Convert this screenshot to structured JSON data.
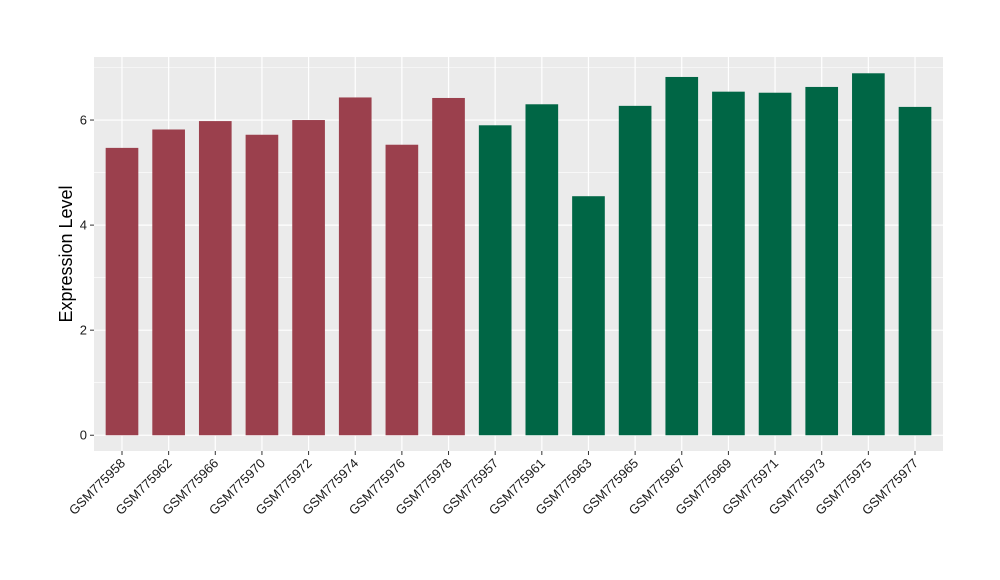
{
  "chart_data": {
    "type": "bar",
    "title": "",
    "xlabel": "",
    "ylabel": "Expression Level",
    "ylim": [
      -0.3,
      7.2
    ],
    "yticks": [
      0,
      2,
      4,
      6
    ],
    "grid": true,
    "legend": "none",
    "colors": {
      "group1": "#9b404d",
      "group2": "#006645",
      "panel": "#ebebeb",
      "grid": "#ffffff"
    },
    "categories": [
      "GSM775958",
      "GSM775962",
      "GSM775966",
      "GSM775970",
      "GSM775972",
      "GSM775974",
      "GSM775976",
      "GSM775978",
      "GSM775957",
      "GSM775961",
      "GSM775963",
      "GSM775965",
      "GSM775967",
      "GSM775969",
      "GSM775971",
      "GSM775973",
      "GSM775975",
      "GSM775977"
    ],
    "values": [
      5.47,
      5.82,
      5.98,
      5.72,
      6.0,
      6.43,
      5.53,
      6.42,
      5.9,
      6.3,
      4.55,
      6.27,
      6.82,
      6.54,
      6.52,
      6.63,
      6.89,
      6.25
    ],
    "groups": [
      1,
      1,
      1,
      1,
      1,
      1,
      1,
      1,
      2,
      2,
      2,
      2,
      2,
      2,
      2,
      2,
      2,
      2
    ]
  }
}
